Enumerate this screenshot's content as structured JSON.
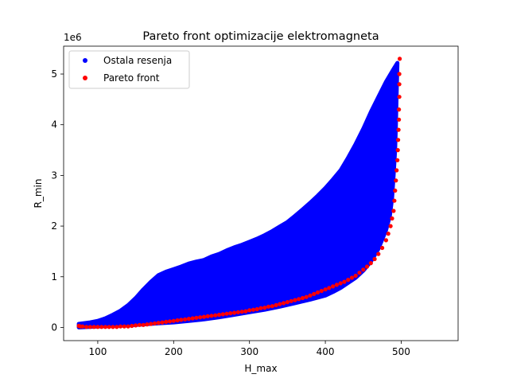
{
  "chart_data": {
    "type": "scatter",
    "title": "Pareto front optimizacije elektromagneta",
    "xlabel": "H_max",
    "ylabel": "R_min",
    "y_offset_label": "1e6",
    "xlim": [
      55,
      575
    ],
    "ylim": [
      -0.26,
      5.55
    ],
    "y_unit_multiplier": 1000000,
    "x_ticks": [
      100,
      200,
      300,
      400,
      500
    ],
    "y_ticks": [
      0,
      1,
      2,
      3,
      4,
      5
    ],
    "grid": false,
    "legend_position": "top-left",
    "series": [
      {
        "name": "Ostala resenja",
        "color": "#0000ff",
        "region_upper": [
          [
            75,
            0.07
          ],
          [
            90,
            0.1
          ],
          [
            100,
            0.13
          ],
          [
            110,
            0.18
          ],
          [
            120,
            0.25
          ],
          [
            130,
            0.33
          ],
          [
            140,
            0.44
          ],
          [
            150,
            0.58
          ],
          [
            160,
            0.75
          ],
          [
            170,
            0.9
          ],
          [
            180,
            1.03
          ],
          [
            190,
            1.1
          ],
          [
            200,
            1.15
          ],
          [
            210,
            1.2
          ],
          [
            220,
            1.26
          ],
          [
            230,
            1.3
          ],
          [
            240,
            1.33
          ],
          [
            250,
            1.4
          ],
          [
            260,
            1.45
          ],
          [
            270,
            1.52
          ],
          [
            280,
            1.58
          ],
          [
            290,
            1.63
          ],
          [
            300,
            1.69
          ],
          [
            310,
            1.75
          ],
          [
            320,
            1.82
          ],
          [
            330,
            1.9
          ],
          [
            340,
            1.99
          ],
          [
            350,
            2.08
          ],
          [
            360,
            2.2
          ],
          [
            370,
            2.33
          ],
          [
            380,
            2.46
          ],
          [
            390,
            2.6
          ],
          [
            400,
            2.75
          ],
          [
            410,
            2.92
          ],
          [
            420,
            3.1
          ],
          [
            430,
            3.35
          ],
          [
            440,
            3.62
          ],
          [
            450,
            3.92
          ],
          [
            460,
            4.25
          ],
          [
            470,
            4.55
          ],
          [
            480,
            4.85
          ],
          [
            490,
            5.1
          ],
          [
            495,
            5.22
          ]
        ],
        "region_lower": [
          [
            495,
            5.22
          ],
          [
            494,
            4.6
          ],
          [
            493,
            4.0
          ],
          [
            492,
            3.5
          ],
          [
            490,
            3.0
          ],
          [
            488,
            2.55
          ],
          [
            485,
            2.2
          ],
          [
            480,
            1.92
          ],
          [
            470,
            1.55
          ],
          [
            460,
            1.3
          ],
          [
            450,
            1.12
          ],
          [
            440,
            0.98
          ],
          [
            430,
            0.88
          ],
          [
            420,
            0.78
          ],
          [
            410,
            0.7
          ],
          [
            400,
            0.63
          ],
          [
            380,
            0.55
          ],
          [
            360,
            0.48
          ],
          [
            340,
            0.41
          ],
          [
            320,
            0.35
          ],
          [
            300,
            0.3
          ],
          [
            280,
            0.25
          ],
          [
            260,
            0.2
          ],
          [
            240,
            0.16
          ],
          [
            220,
            0.13
          ],
          [
            200,
            0.1
          ],
          [
            180,
            0.08
          ],
          [
            160,
            0.06
          ],
          [
            140,
            0.04
          ],
          [
            120,
            0.03
          ],
          [
            100,
            0.02
          ],
          [
            75,
            0.0
          ]
        ]
      },
      {
        "name": "Pareto front",
        "color": "#ff0000",
        "points": [
          [
            75,
            0.03
          ],
          [
            77,
            0.02
          ],
          [
            80,
            0.02
          ],
          [
            85,
            0.01
          ],
          [
            90,
            0.01
          ],
          [
            95,
            0.01
          ],
          [
            100,
            0.01
          ],
          [
            105,
            0.01
          ],
          [
            110,
            0.01
          ],
          [
            115,
            0.01
          ],
          [
            120,
            0.01
          ],
          [
            125,
            0.01
          ],
          [
            130,
            0.02
          ],
          [
            135,
            0.02
          ],
          [
            140,
            0.02
          ],
          [
            145,
            0.03
          ],
          [
            150,
            0.04
          ],
          [
            155,
            0.05
          ],
          [
            160,
            0.05
          ],
          [
            165,
            0.06
          ],
          [
            170,
            0.07
          ],
          [
            175,
            0.08
          ],
          [
            180,
            0.09
          ],
          [
            185,
            0.1
          ],
          [
            190,
            0.11
          ],
          [
            195,
            0.12
          ],
          [
            200,
            0.13
          ],
          [
            205,
            0.14
          ],
          [
            210,
            0.15
          ],
          [
            215,
            0.16
          ],
          [
            220,
            0.17
          ],
          [
            225,
            0.18
          ],
          [
            230,
            0.19
          ],
          [
            235,
            0.2
          ],
          [
            240,
            0.21
          ],
          [
            245,
            0.22
          ],
          [
            250,
            0.23
          ],
          [
            255,
            0.24
          ],
          [
            260,
            0.25
          ],
          [
            265,
            0.26
          ],
          [
            270,
            0.27
          ],
          [
            275,
            0.28
          ],
          [
            280,
            0.29
          ],
          [
            285,
            0.3
          ],
          [
            290,
            0.31
          ],
          [
            295,
            0.32
          ],
          [
            300,
            0.34
          ],
          [
            305,
            0.35
          ],
          [
            310,
            0.36
          ],
          [
            315,
            0.38
          ],
          [
            320,
            0.39
          ],
          [
            325,
            0.41
          ],
          [
            330,
            0.42
          ],
          [
            335,
            0.44
          ],
          [
            340,
            0.46
          ],
          [
            345,
            0.48
          ],
          [
            350,
            0.5
          ],
          [
            355,
            0.52
          ],
          [
            360,
            0.54
          ],
          [
            365,
            0.56
          ],
          [
            370,
            0.58
          ],
          [
            375,
            0.6
          ],
          [
            380,
            0.63
          ],
          [
            385,
            0.66
          ],
          [
            390,
            0.69
          ],
          [
            395,
            0.72
          ],
          [
            400,
            0.75
          ],
          [
            405,
            0.78
          ],
          [
            410,
            0.81
          ],
          [
            415,
            0.84
          ],
          [
            420,
            0.87
          ],
          [
            425,
            0.9
          ],
          [
            430,
            0.94
          ],
          [
            435,
            0.98
          ],
          [
            440,
            1.02
          ],
          [
            445,
            1.08
          ],
          [
            450,
            1.14
          ],
          [
            455,
            1.2
          ],
          [
            460,
            1.27
          ],
          [
            465,
            1.35
          ],
          [
            470,
            1.45
          ],
          [
            475,
            1.57
          ],
          [
            480,
            1.72
          ],
          [
            483,
            1.85
          ],
          [
            486,
            2.0
          ],
          [
            488,
            2.15
          ],
          [
            490,
            2.3
          ],
          [
            491,
            2.5
          ],
          [
            492,
            2.7
          ],
          [
            493,
            2.9
          ],
          [
            494,
            3.1
          ],
          [
            495,
            3.3
          ],
          [
            495.5,
            3.5
          ],
          [
            496,
            3.7
          ],
          [
            496.5,
            3.9
          ],
          [
            497,
            4.1
          ],
          [
            497,
            4.3
          ],
          [
            497.5,
            4.55
          ],
          [
            497.5,
            4.8
          ],
          [
            497.5,
            5.0
          ],
          [
            498,
            5.3
          ]
        ]
      }
    ]
  }
}
